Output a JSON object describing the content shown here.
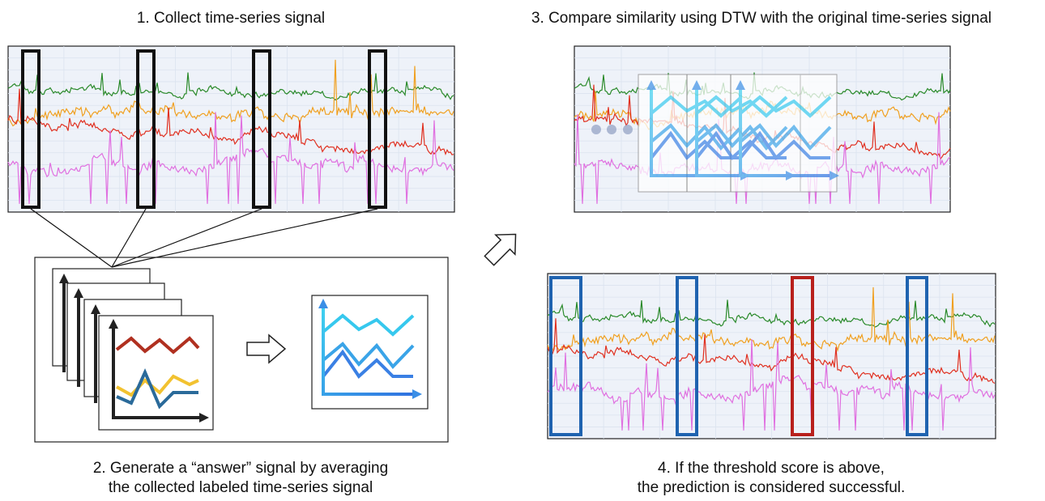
{
  "steps": [
    {
      "lines": [
        "1. Collect time-series signal"
      ]
    },
    {
      "lines": [
        "2. Generate a “answer” signal by averaging",
        "the collected labeled time-series signal"
      ]
    },
    {
      "lines": [
        "3. Compare similarity using DTW with the original time-series signal"
      ]
    },
    {
      "lines": [
        "4. If the threshold score is above,",
        "the prediction is considered successful."
      ]
    }
  ]
}
